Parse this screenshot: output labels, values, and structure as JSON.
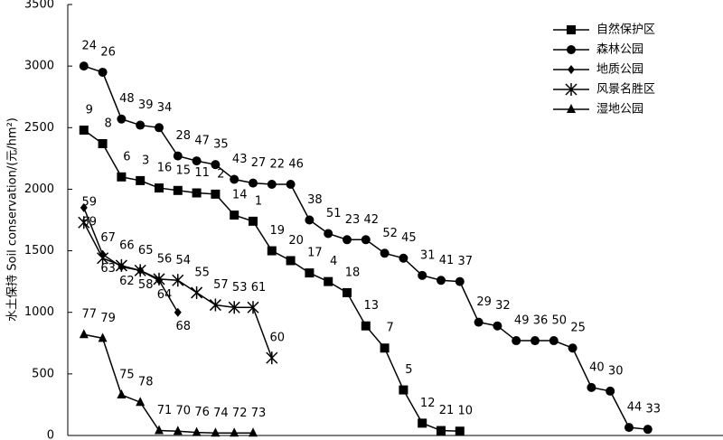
{
  "chart_data": {
    "type": "line",
    "y_label": "水土保持 Soil conservation/(元/hm²)",
    "xlim": [
      0,
      35
    ],
    "ylim": [
      0,
      3500
    ],
    "yticks": [
      0,
      500,
      1000,
      1500,
      2000,
      2500,
      3000,
      3500
    ],
    "legend": "upper right",
    "series": [
      {
        "name": "自然保护区",
        "color": "#000000",
        "marker": "square",
        "x": [
          1,
          2,
          3,
          4,
          5,
          6,
          7,
          8,
          9,
          10,
          11,
          12,
          13,
          14,
          15,
          16,
          17,
          18,
          19,
          20,
          21
        ],
        "values": [
          2480,
          2370,
          2100,
          2070,
          2010,
          1990,
          1970,
          1960,
          1790,
          1740,
          1500,
          1420,
          1320,
          1250,
          1160,
          890,
          710,
          370,
          100,
          40,
          35
        ],
        "labels": [
          "9",
          "8",
          "6",
          "3",
          "16",
          "15",
          "11",
          "2",
          "14",
          "1",
          "19",
          "20",
          "17",
          "4",
          "18",
          "13",
          "7",
          "5",
          "12",
          "21",
          "10"
        ]
      },
      {
        "name": "森林公园",
        "color": "#000000",
        "marker": "circle",
        "x": [
          1,
          2,
          3,
          4,
          5,
          6,
          7,
          8,
          9,
          10,
          11,
          12,
          13,
          14,
          15,
          16,
          17,
          18,
          19,
          20,
          21,
          22,
          23,
          24,
          25,
          26,
          27,
          28,
          29,
          30,
          31
        ],
        "values": [
          3000,
          2950,
          2570,
          2520,
          2500,
          2270,
          2230,
          2200,
          2080,
          2050,
          2040,
          2040,
          1750,
          1640,
          1590,
          1590,
          1480,
          1440,
          1300,
          1260,
          1250,
          920,
          890,
          770,
          770,
          770,
          710,
          390,
          360,
          65,
          50
        ],
        "labels": [
          "24",
          "26",
          "48",
          "39",
          "34",
          "28",
          "47",
          "35",
          "43",
          "27",
          "22",
          "46",
          "38",
          "51",
          "23",
          "42",
          "52",
          "45",
          "31",
          "41",
          "37",
          "29",
          "32",
          "49",
          "36",
          "50",
          "25",
          "40",
          "30",
          "44",
          "33"
        ]
      },
      {
        "name": "地质公园",
        "color": "#000000",
        "marker": "diamond",
        "x": [
          1,
          2,
          3,
          4,
          5,
          6
        ],
        "values": [
          1850,
          1470,
          1370,
          1340,
          1260,
          1000
        ],
        "labels": [
          "69",
          "63",
          "62",
          "58",
          "64",
          "68"
        ]
      },
      {
        "name": "风景名胜区",
        "color": "#000000",
        "marker": "star",
        "x": [
          1,
          2,
          3,
          4,
          5,
          6,
          7,
          8,
          9,
          10,
          11
        ],
        "values": [
          1730,
          1440,
          1380,
          1340,
          1270,
          1260,
          1160,
          1060,
          1040,
          1040,
          630
        ],
        "labels": [
          "59",
          "67",
          "66",
          "65",
          "56",
          "54",
          "55",
          "57",
          "53",
          "61",
          "60"
        ]
      },
      {
        "name": "湿地公园",
        "color": "#000000",
        "marker": "triangle",
        "x": [
          1,
          2,
          3,
          4,
          5,
          6,
          7,
          8,
          9,
          10
        ],
        "values": [
          820,
          790,
          330,
          270,
          40,
          35,
          25,
          20,
          20,
          20
        ],
        "labels": [
          "77",
          "79",
          "75",
          "78",
          "71",
          "70",
          "76",
          "74",
          "72",
          "73"
        ]
      }
    ]
  }
}
